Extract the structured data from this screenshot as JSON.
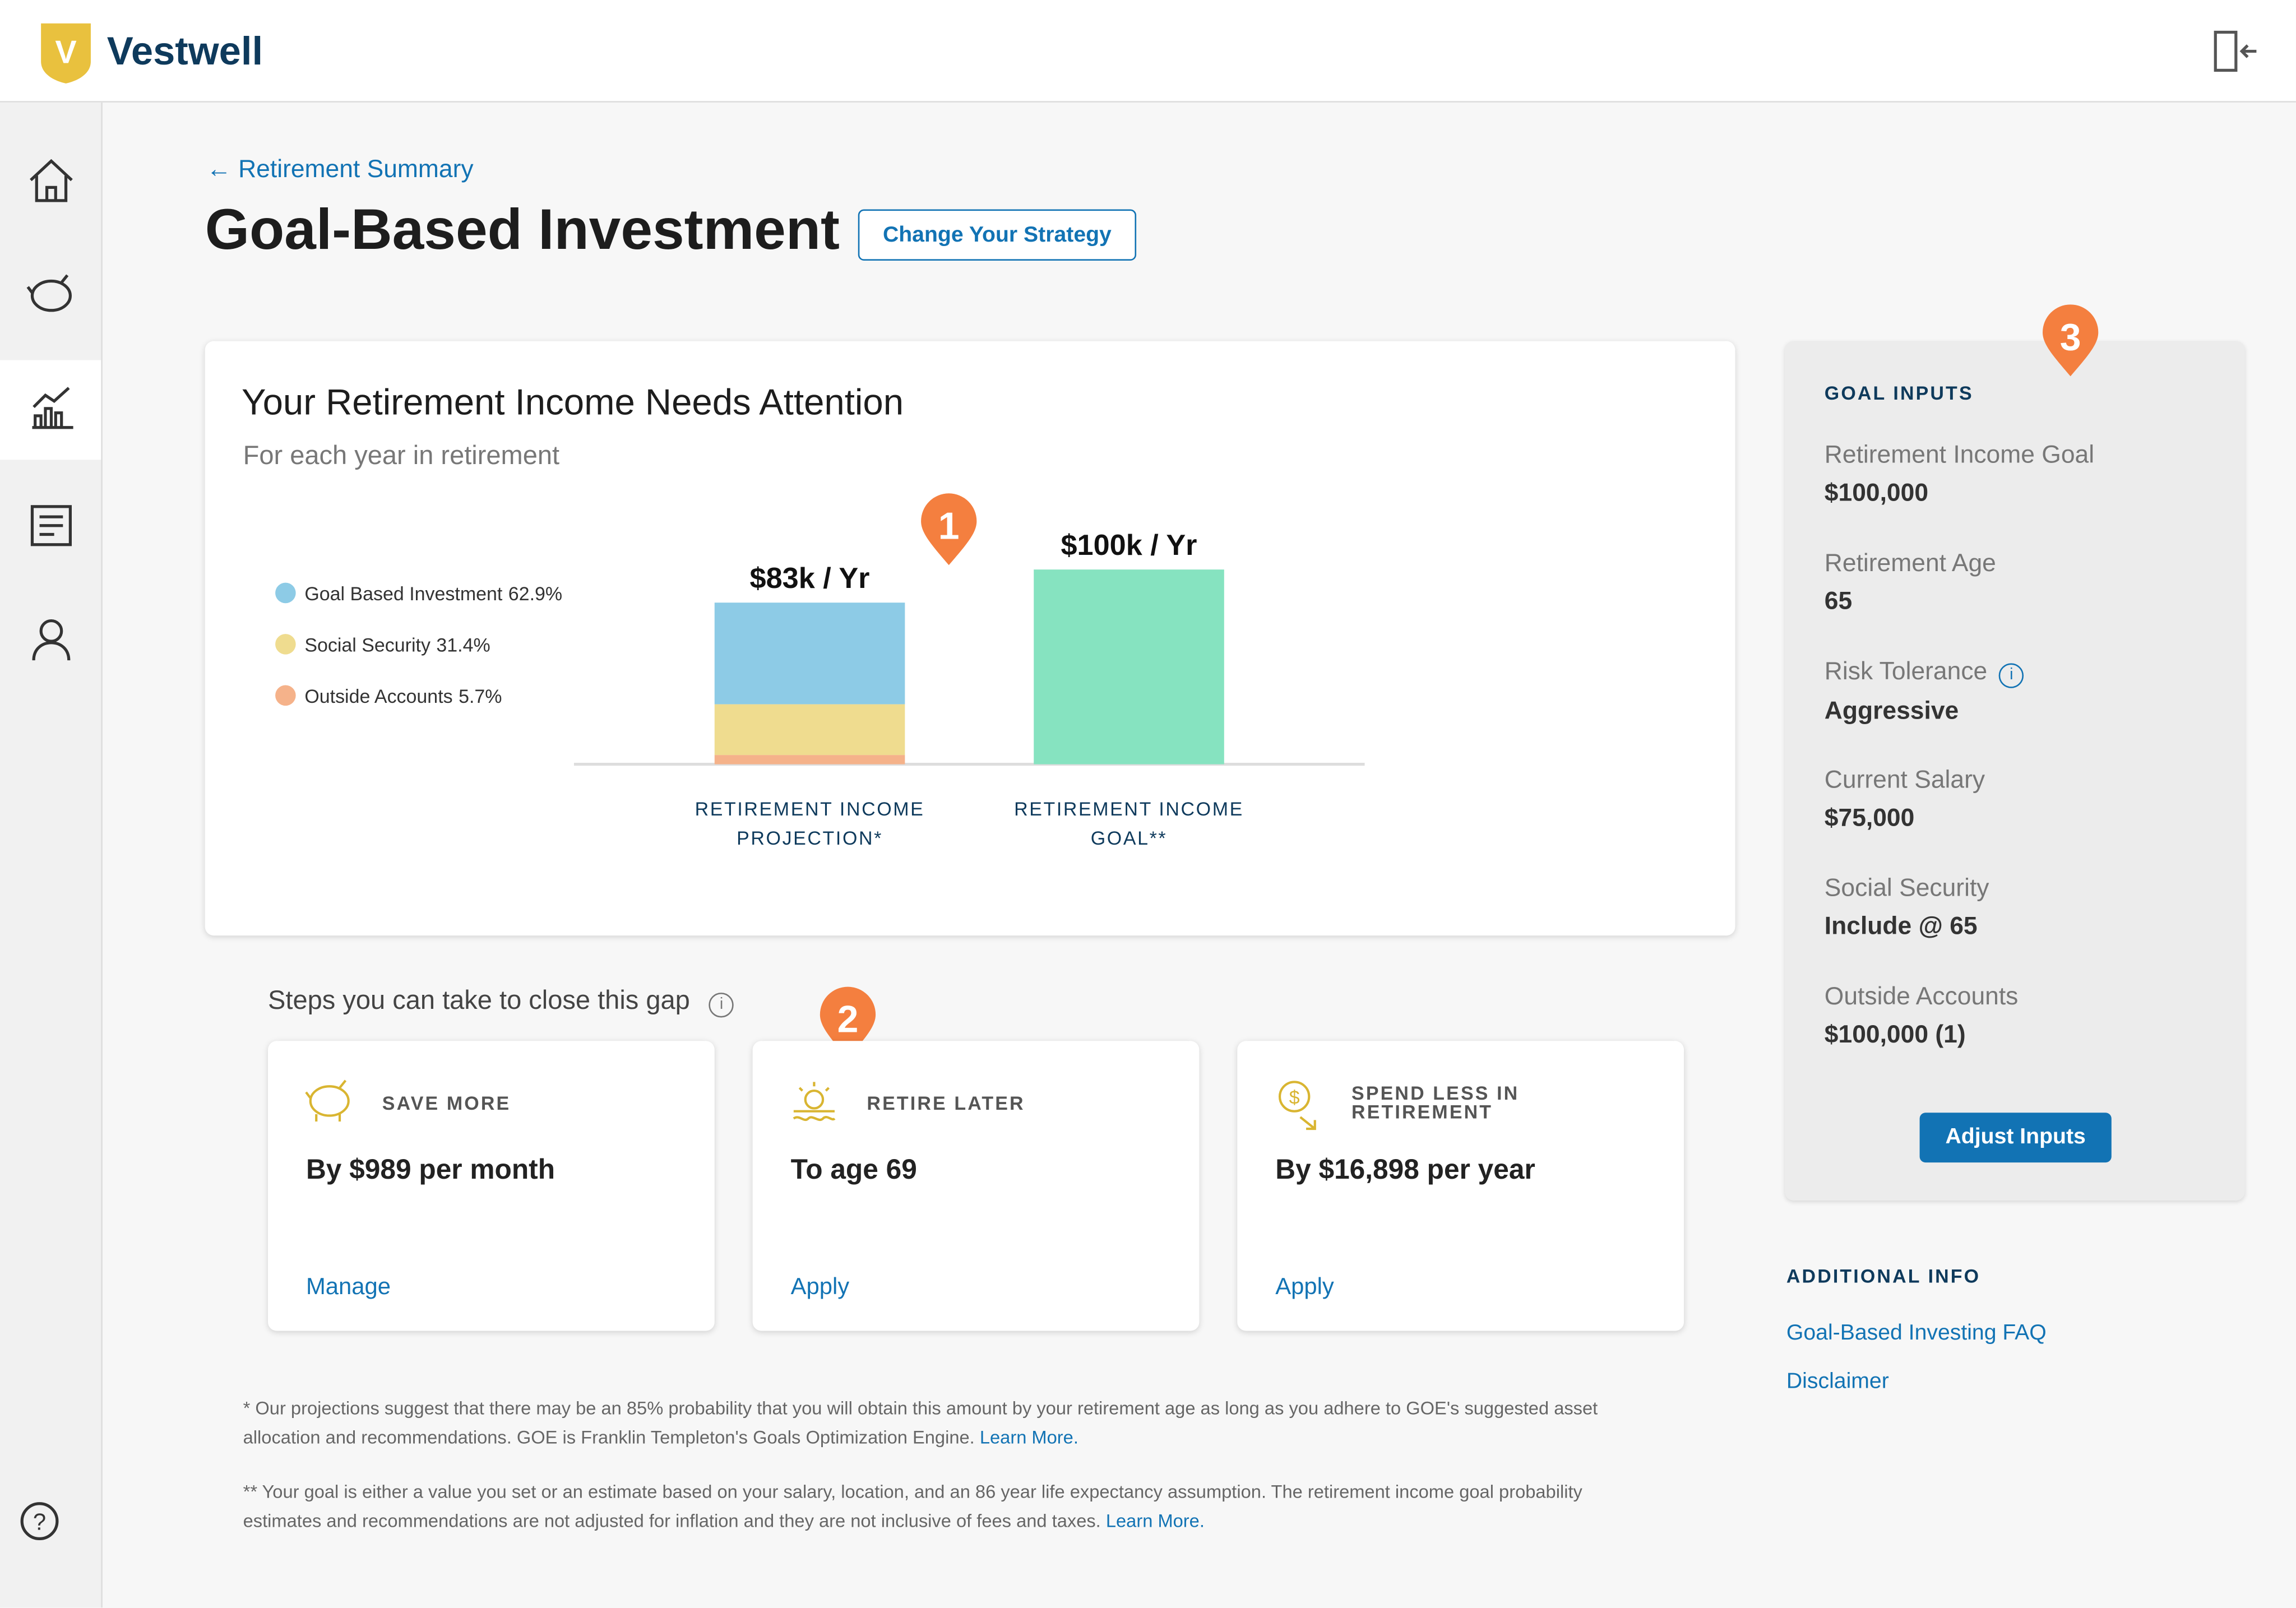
{
  "header": {
    "brand": "Vestwell"
  },
  "page": {
    "breadcrumb": "Retirement Summary",
    "title": "Goal-Based Investment",
    "strategy_button": "Change Your Strategy"
  },
  "chart": {
    "title": "Your Retirement Income Needs Attention",
    "subtitle": "For each year in retirement",
    "bars": [
      {
        "label": "RETIREMENT INCOME PROJECTION*",
        "value": 83,
        "value_label": "$83k / Yr",
        "segments": [
          {
            "name": "Goal Based Investment",
            "color": "#8dcbe6",
            "value": 62.9,
            "value_label": "62.9%"
          },
          {
            "name": "Social Security",
            "color": "#efdc8f",
            "value": 31.4,
            "value_label": "31.4%"
          },
          {
            "name": "Outside Accounts",
            "color": "#f5b28a",
            "value": 5.7,
            "value_label": "5.7%"
          }
        ]
      },
      {
        "label": "RETIREMENT INCOME GOAL**",
        "value": 100,
        "value_label": "$100k / Yr",
        "color": "#86e3c0"
      }
    ]
  },
  "callouts": [
    "1",
    "2",
    "3"
  ],
  "steps": {
    "heading": "Steps you can take to close this gap",
    "cards": [
      {
        "title": "SAVE MORE",
        "value": "By $989 per month",
        "action": "Manage"
      },
      {
        "title": "RETIRE LATER",
        "value": "To age 69",
        "action": "Apply"
      },
      {
        "title": "SPEND LESS IN RETIREMENT",
        "value": "By $16,898 per year",
        "action": "Apply"
      }
    ]
  },
  "footnotes": [
    {
      "text": "* Our projections suggest that there may be an 85% probability that you will obtain this amount by your retirement age as long as you adhere to GOE's suggested asset allocation and recommendations. GOE is Franklin Templeton's Goals Optimization Engine.",
      "link": "Learn More."
    },
    {
      "text": "** Your goal is either a value you set or an estimate based on your salary, location, and an 86 year life expectancy assumption. The retirement income goal probability estimates and recommendations are not adjusted for inflation and they are not inclusive of fees and taxes.",
      "link": "Learn More."
    }
  ],
  "goal_inputs": {
    "heading": "GOAL INPUTS",
    "items": [
      {
        "label": "Retirement Income Goal",
        "value": "$100,000"
      },
      {
        "label": "Retirement Age",
        "value": "65"
      },
      {
        "label": "Risk Tolerance",
        "value": "Aggressive"
      },
      {
        "label": "Current Salary",
        "value": "$75,000"
      },
      {
        "label": "Social Security",
        "value": "Include @ 65"
      },
      {
        "label": "Outside Accounts",
        "value": "$100,000 (1)"
      }
    ],
    "button": "Adjust Inputs"
  },
  "additional_info": {
    "heading": "ADDITIONAL INFO",
    "links": [
      "Goal-Based Investing FAQ",
      "Disclaimer"
    ]
  }
}
